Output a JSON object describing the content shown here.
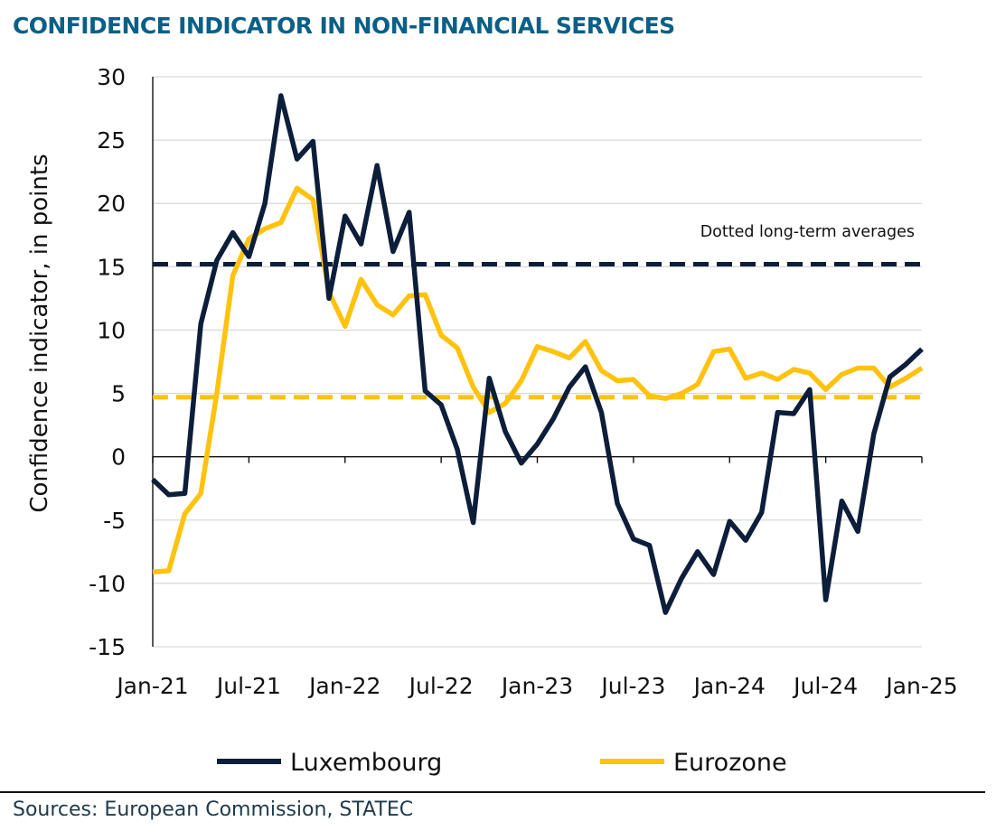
{
  "title": "CONFIDENCE INDICATOR IN NON-FINANCIAL SERVICES",
  "sources": "Sources: European Commission, STATEC",
  "colors": {
    "title": "#0b5f87",
    "luxembourg": "#0c1e3a",
    "eurozone": "#ffc20e",
    "grid": "#d9d9d9",
    "axis": "#111111",
    "text": "#111111"
  },
  "chart_data": {
    "type": "line",
    "ylabel": "Confidence indicator, in points",
    "ylim": [
      -15,
      30
    ],
    "yticks": [
      30,
      25,
      20,
      15,
      10,
      5,
      0,
      -5,
      -10,
      -15
    ],
    "xticks": [
      "Jan-21",
      "Jul-21",
      "Jan-22",
      "Jul-22",
      "Jan-23",
      "Jul-23",
      "Jan-24",
      "Jul-24",
      "Jan-25"
    ],
    "x_start": "Jan-21",
    "x_end": "Jan-25",
    "grid": true,
    "legend_position": "bottom",
    "annotation": "Dotted long-term averages",
    "series": [
      {
        "name": "Luxembourg",
        "values": [
          -1.8,
          -3.0,
          -2.9,
          10.5,
          15.5,
          17.7,
          15.8,
          20.0,
          28.5,
          23.5,
          24.9,
          12.5,
          19.0,
          16.8,
          23.0,
          16.2,
          19.3,
          5.2,
          4.1,
          0.6,
          -5.2,
          6.2,
          2.0,
          -0.5,
          1.0,
          3.0,
          5.5,
          7.1,
          3.5,
          -3.7,
          -6.5,
          -7.0,
          -12.3,
          -9.6,
          -7.5,
          -9.3,
          -5.1,
          -6.6,
          -4.4,
          3.5,
          3.4,
          5.3,
          -11.3,
          -3.5,
          -5.9,
          1.8,
          6.3,
          7.3,
          8.5
        ],
        "long_term_average": 15.2
      },
      {
        "name": "Eurozone",
        "values": [
          -9.1,
          -9.0,
          -4.5,
          -2.9,
          5.0,
          14.3,
          17.2,
          18.0,
          18.5,
          21.2,
          20.3,
          13.0,
          10.3,
          14.0,
          12.0,
          11.2,
          12.7,
          12.8,
          9.6,
          8.6,
          5.5,
          3.5,
          4.2,
          6.0,
          8.7,
          8.3,
          7.8,
          9.1,
          6.8,
          6.0,
          6.1,
          4.8,
          4.6,
          5.0,
          5.7,
          8.3,
          8.5,
          6.2,
          6.6,
          6.1,
          6.9,
          6.6,
          5.3,
          6.5,
          7.0,
          7.0,
          5.5,
          6.2,
          7.0
        ],
        "long_term_average": 4.7
      }
    ]
  }
}
